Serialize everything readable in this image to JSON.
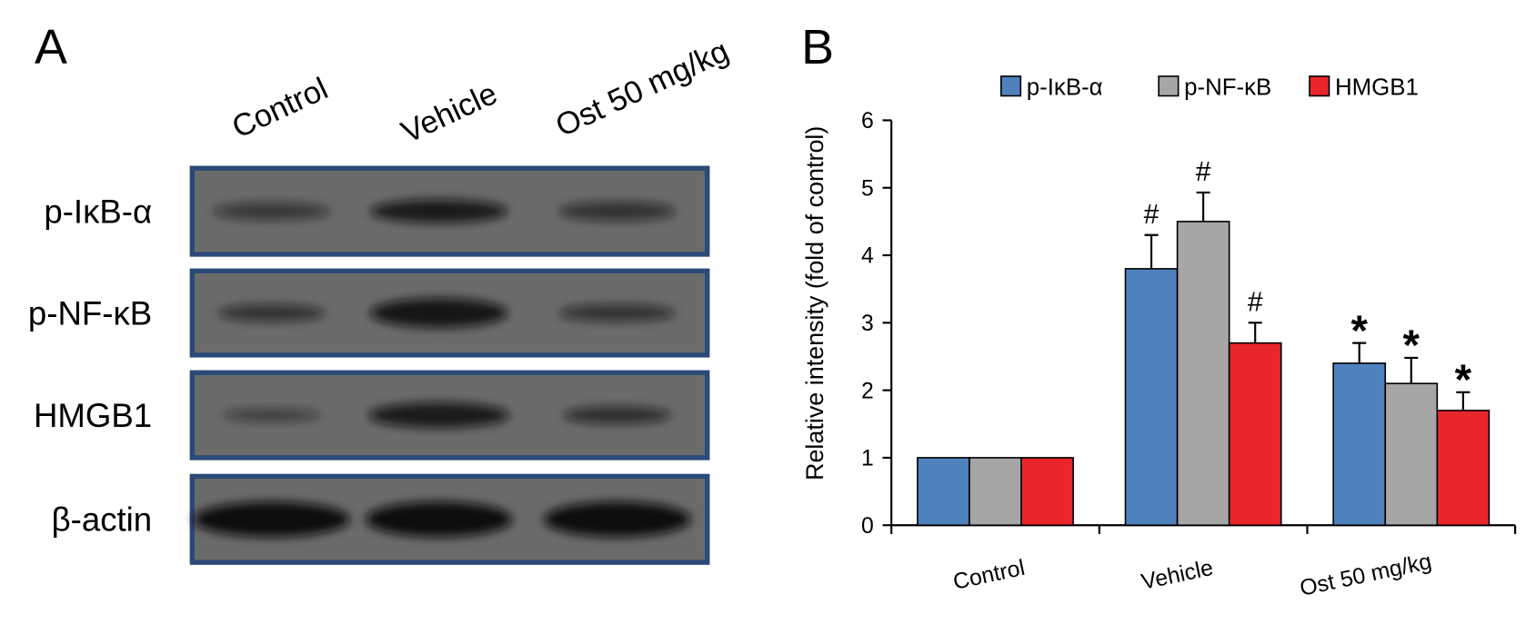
{
  "panel_a": {
    "label": "A",
    "lanes": [
      "Control",
      "Vehicle",
      "Ost 50 mg/kg"
    ],
    "rows": [
      "p-IκB-α",
      "p-NF-κB",
      "HMGB1",
      "β-actin"
    ]
  },
  "chart_data": {
    "type": "bar",
    "panel_label": "B",
    "ylabel": "Relative intensity (fold of control)",
    "categories": [
      "Control",
      "Vehicle",
      "Ost 50 mg/kg"
    ],
    "series": [
      {
        "name": "p-IκB-α",
        "color": "#4f81bd",
        "values": [
          1,
          3.8,
          2.4
        ],
        "errors": [
          null,
          0.5,
          0.3
        ],
        "annotations": [
          null,
          "#",
          "*"
        ]
      },
      {
        "name": "p-NF-κB",
        "color": "#a6a6a6",
        "values": [
          1,
          4.5,
          2.1
        ],
        "errors": [
          null,
          0.43,
          0.38
        ],
        "annotations": [
          null,
          "#",
          "*"
        ]
      },
      {
        "name": "HMGB1",
        "color": "#e8262b",
        "values": [
          1,
          2.7,
          1.7
        ],
        "errors": [
          null,
          0.3,
          0.27
        ],
        "annotations": [
          null,
          "#",
          "*"
        ]
      }
    ],
    "ylim": [
      0,
      6
    ],
    "yticks": [
      0,
      1,
      2,
      3,
      4,
      5,
      6
    ],
    "grid": false,
    "legend": "top"
  }
}
